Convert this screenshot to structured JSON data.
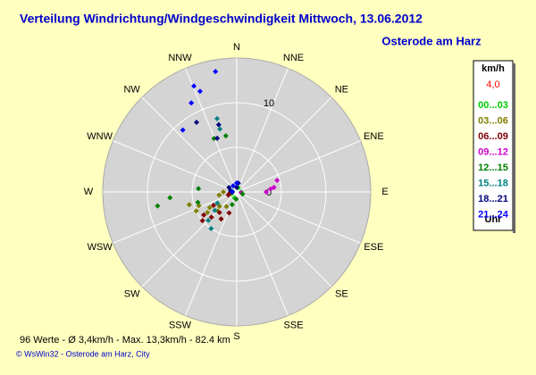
{
  "chart_data": {
    "type": "polar-scatter",
    "title": "Verteilung Windrichtung/Windgeschwindigkeit  Mittwoch, 13.06.2012",
    "subtitle": "Osterode am Harz",
    "directions": [
      "N",
      "NNE",
      "NE",
      "ENE",
      "E",
      "ESE",
      "SE",
      "SSE",
      "S",
      "SSW",
      "SW",
      "WSW",
      "W",
      "WNW",
      "NW",
      "NNW"
    ],
    "rlim": [
      0,
      15
    ],
    "rticks": [
      0,
      10
    ],
    "rgrid": [
      5,
      10
    ],
    "legend_title": "km/h",
    "current_value": "4,0",
    "legend_footer": "Uhr",
    "series": [
      {
        "name": "00...03",
        "color": "#00cc00",
        "theta": [
          20,
          90,
          200,
          250
        ],
        "values": [
          0.5,
          0.5,
          0.7,
          0.6
        ]
      },
      {
        "name": "03...06",
        "color": "#808000",
        "theta": [
          250,
          240,
          230,
          260,
          255,
          245,
          235,
          225,
          215,
          270
        ],
        "values": [
          4.5,
          3.5,
          2.5,
          2.0,
          5.5,
          5.0,
          4.0,
          3.0,
          2.0,
          1.5
        ]
      },
      {
        "name": "06...09",
        "color": "#800000",
        "theta": [
          235,
          225,
          220,
          230,
          240,
          210,
          200,
          250,
          270,
          260
        ],
        "values": [
          4.5,
          4.0,
          3.0,
          5.0,
          3.0,
          3.5,
          2.5,
          1.0,
          0.5,
          0.8
        ]
      },
      {
        "name": "09...12",
        "color": "#cc00cc",
        "theta": [
          74,
          85,
          83,
          90,
          100
        ],
        "values": [
          4.7,
          3.8,
          4.2,
          3.3,
          0.5
        ]
      },
      {
        "name": "12...15",
        "color": "#008000",
        "theta": [
          349,
          337,
          255,
          260,
          265,
          275,
          110,
          200,
          185
        ],
        "values": [
          6.4,
          6.5,
          4.5,
          9.0,
          7.5,
          4.3,
          0.7,
          1.5,
          0.8
        ]
      },
      {
        "name": "15...18",
        "color": "#008080",
        "theta": [
          345,
          345,
          240,
          225,
          215,
          230,
          280
        ],
        "values": [
          8.5,
          7.3,
          2.5,
          4.5,
          5.0,
          3.2,
          0.5
        ]
      },
      {
        "name": "18...21",
        "color": "#000080",
        "theta": [
          345,
          340,
          330,
          300,
          280,
          0,
          10
        ],
        "values": [
          7.8,
          6.4,
          9.0,
          1.0,
          0.7,
          0.5,
          1.0
        ]
      },
      {
        "name": "21...24",
        "color": "#0000ff",
        "theta": [
          350,
          340,
          338,
          333,
          319,
          0,
          330,
          270
        ],
        "values": [
          13.7,
          12.0,
          12.8,
          11.2,
          9.2,
          1.0,
          0.8,
          0.5
        ]
      }
    ],
    "stats": "96 Werte  -  Ø 3,4km/h  -  Max. 13,3km/h  -  82.4 km",
    "credit": "© WsWin32  -  Osterode am Harz, City"
  }
}
